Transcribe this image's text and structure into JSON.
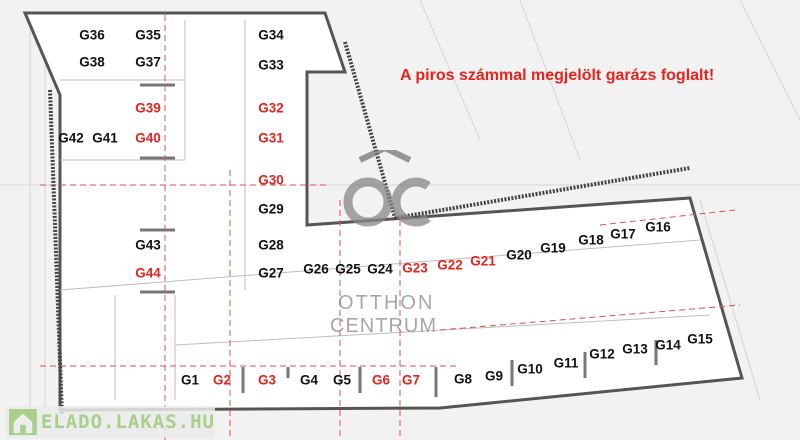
{
  "notice": "A piros számmal megjelölt garázs foglalt!",
  "colors": {
    "taken": "#e8221c",
    "free": "#111111",
    "wall": "#555555",
    "guide": "#e05050"
  },
  "logo": {
    "line1": "OTTHON",
    "line2": "CENTRUM",
    "mark": "OC"
  },
  "watermark": "ELADO.LAKAS.HU",
  "garages": [
    {
      "id": "G36",
      "taken": false
    },
    {
      "id": "G35",
      "taken": false
    },
    {
      "id": "G34",
      "taken": false
    },
    {
      "id": "G38",
      "taken": false
    },
    {
      "id": "G37",
      "taken": false
    },
    {
      "id": "G33",
      "taken": false
    },
    {
      "id": "G39",
      "taken": true
    },
    {
      "id": "G32",
      "taken": true
    },
    {
      "id": "G42",
      "taken": false
    },
    {
      "id": "G41",
      "taken": false
    },
    {
      "id": "G40",
      "taken": true
    },
    {
      "id": "G31",
      "taken": true
    },
    {
      "id": "G30",
      "taken": true
    },
    {
      "id": "G29",
      "taken": false
    },
    {
      "id": "G43",
      "taken": false
    },
    {
      "id": "G28",
      "taken": false
    },
    {
      "id": "G44",
      "taken": true
    },
    {
      "id": "G27",
      "taken": false
    },
    {
      "id": "G26",
      "taken": false
    },
    {
      "id": "G25",
      "taken": false
    },
    {
      "id": "G24",
      "taken": false
    },
    {
      "id": "G23",
      "taken": true
    },
    {
      "id": "G22",
      "taken": true
    },
    {
      "id": "G21",
      "taken": true
    },
    {
      "id": "G20",
      "taken": false
    },
    {
      "id": "G19",
      "taken": false
    },
    {
      "id": "G18",
      "taken": false
    },
    {
      "id": "G17",
      "taken": false
    },
    {
      "id": "G16",
      "taken": false
    },
    {
      "id": "G1",
      "taken": false
    },
    {
      "id": "G2",
      "taken": true
    },
    {
      "id": "G3",
      "taken": true
    },
    {
      "id": "G4",
      "taken": false
    },
    {
      "id": "G5",
      "taken": false
    },
    {
      "id": "G6",
      "taken": true
    },
    {
      "id": "G7",
      "taken": true
    },
    {
      "id": "G8",
      "taken": false
    },
    {
      "id": "G9",
      "taken": false
    },
    {
      "id": "G10",
      "taken": false
    },
    {
      "id": "G11",
      "taken": false
    },
    {
      "id": "G12",
      "taken": false
    },
    {
      "id": "G13",
      "taken": false
    },
    {
      "id": "G14",
      "taken": false
    },
    {
      "id": "G15",
      "taken": false
    }
  ]
}
